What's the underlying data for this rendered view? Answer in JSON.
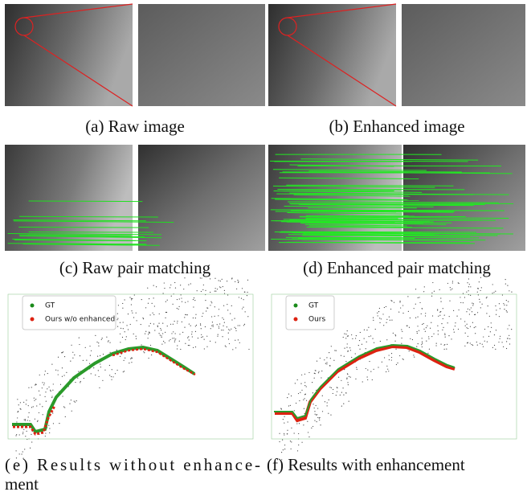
{
  "panels": [
    {
      "caption": [
        "(a) Raw image"
      ]
    },
    {
      "caption": [
        "(b) Enhanced image"
      ]
    },
    {
      "caption": [
        "(c) Raw pair matching"
      ]
    },
    {
      "caption": [
        "(d) Enhanced pair matching"
      ]
    },
    {
      "caption": [
        "(e) Results without enhance-",
        "ment"
      ],
      "legend": [
        "GT",
        "Ours w/o enhanced"
      ]
    },
    {
      "caption": [
        "(f) Results with enhancement"
      ],
      "legend": [
        "GT",
        "Ours"
      ]
    }
  ]
}
